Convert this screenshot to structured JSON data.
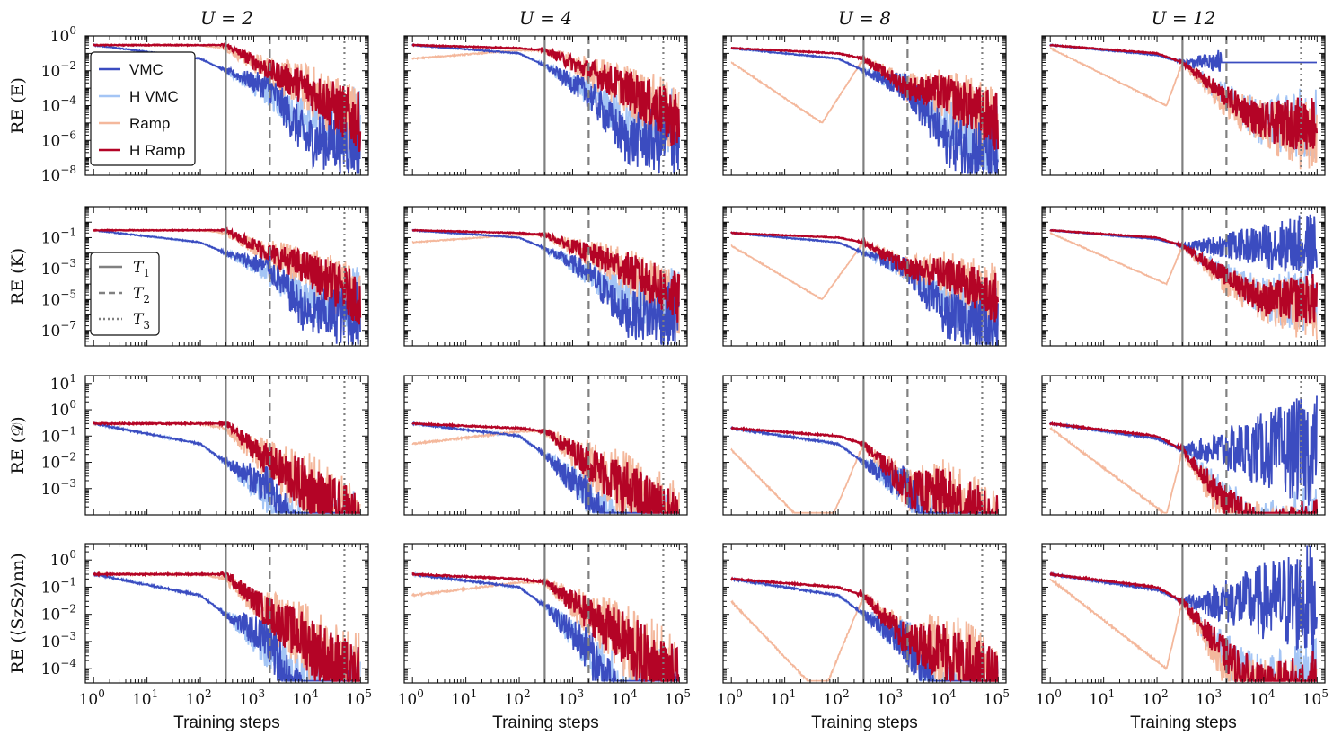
{
  "colors": {
    "VMC": "#3b4cc0",
    "H VMC": "#a4c5f5",
    "Ramp": "#f4b89c",
    "H Ramp": "#b40426",
    "markers": "#808080"
  },
  "legend_series": [
    "VMC",
    "H VMC",
    "Ramp",
    "H Ramp"
  ],
  "legend_markers": [
    {
      "label": "T",
      "sub": "1",
      "style": "solid"
    },
    {
      "label": "T",
      "sub": "2",
      "style": "dashed"
    },
    {
      "label": "T",
      "sub": "3",
      "style": "dotted"
    }
  ],
  "chart_data": {
    "type": "line",
    "layout": "grid 4x4",
    "x_scale": "log",
    "xlim": [
      0.7,
      140000
    ],
    "xlabel": "Training steps",
    "x_ticks": [
      1,
      10,
      100,
      1000,
      10000,
      100000
    ],
    "x_tick_labels": [
      "10^0",
      "10^1",
      "10^2",
      "10^3",
      "10^4",
      "10^5"
    ],
    "columns": [
      {
        "title": "U = 2",
        "markers": {
          "T1": 300,
          "T2": 2000,
          "T3": 50000
        }
      },
      {
        "title": "U = 4",
        "markers": {
          "T1": 300,
          "T2": 2000,
          "T3": 50000
        }
      },
      {
        "title": "U = 8",
        "markers": {
          "T1": 300,
          "T2": 2000,
          "T3": 50000
        }
      },
      {
        "title": "U = 12",
        "markers": {
          "T1": 300,
          "T2": 2000,
          "T3": 50000
        }
      }
    ],
    "rows": [
      {
        "ylabel": "RE (E)",
        "y_scale": "log",
        "ylim": [
          1e-08,
          1
        ],
        "y_ticks": [
          -8,
          -6,
          -4,
          -2,
          0
        ]
      },
      {
        "ylabel": "RE (K)",
        "y_scale": "log",
        "ylim": [
          1e-08,
          10
        ],
        "y_ticks": [
          -7,
          -5,
          -3,
          -1
        ]
      },
      {
        "ylabel": "RE (𝒟)",
        "y_scale": "log",
        "ylim": [
          0.0001,
          20
        ],
        "y_ticks": [
          -3,
          -2,
          -1,
          0,
          1
        ]
      },
      {
        "ylabel": "RE (⟨SzSz⟩nn)",
        "y_scale": "log",
        "ylim": [
          3e-05,
          4
        ],
        "y_ticks": [
          -4,
          -3,
          -2,
          -1,
          0
        ]
      }
    ],
    "series": [
      {
        "name": "VMC",
        "panels": [
          [
            {
              "x": 1,
              "y": 0.3
            },
            {
              "x": 100,
              "y": 0.05
            },
            {
              "x": 300,
              "y": 0.01
            },
            {
              "x": 2000,
              "y": 0.001
            },
            {
              "x": 10000,
              "y": 1e-06
            },
            {
              "x": 100000,
              "y": 1e-06
            }
          ],
          [
            {
              "x": 1,
              "y": 0.3
            },
            {
              "x": 100,
              "y": 0.1
            },
            {
              "x": 300,
              "y": 0.02
            },
            {
              "x": 2000,
              "y": 0.0005
            },
            {
              "x": 10000,
              "y": 1e-06
            },
            {
              "x": 100000,
              "y": 1e-06
            }
          ],
          [
            {
              "x": 1,
              "y": 0.2
            },
            {
              "x": 100,
              "y": 0.05
            },
            {
              "x": 300,
              "y": 0.01
            },
            {
              "x": 2000,
              "y": 0.001
            },
            {
              "x": 10000,
              "y": 1e-06
            },
            {
              "x": 100000,
              "y": 1e-07
            }
          ],
          [
            {
              "x": 1,
              "y": 0.3
            },
            {
              "x": 100,
              "y": 0.08
            },
            {
              "x": 300,
              "y": 0.03
            },
            {
              "x": 2000,
              "y": 0.03
            },
            {
              "x": 10000,
              "y": 0.03
            },
            {
              "x": 100000,
              "y": 0.03
            }
          ]
        ]
      },
      {
        "name": "H VMC",
        "panels": [
          [
            {
              "x": 1,
              "y": 0.3
            },
            {
              "x": 100,
              "y": 0.05
            },
            {
              "x": 300,
              "y": 0.01
            },
            {
              "x": 2000,
              "y": 0.0005
            },
            {
              "x": 10000,
              "y": 1e-05
            },
            {
              "x": 100000,
              "y": 1e-05
            }
          ],
          [
            {
              "x": 1,
              "y": 0.3
            },
            {
              "x": 100,
              "y": 0.1
            },
            {
              "x": 300,
              "y": 0.02
            },
            {
              "x": 2000,
              "y": 0.0005
            },
            {
              "x": 10000,
              "y": 1e-05
            },
            {
              "x": 100000,
              "y": 1e-05
            }
          ],
          [
            {
              "x": 1,
              "y": 0.2
            },
            {
              "x": 100,
              "y": 0.05
            },
            {
              "x": 300,
              "y": 0.01
            },
            {
              "x": 2000,
              "y": 0.001
            },
            {
              "x": 10000,
              "y": 1e-05
            },
            {
              "x": 100000,
              "y": 1e-06
            }
          ],
          [
            {
              "x": 1,
              "y": 0.3
            },
            {
              "x": 100,
              "y": 0.08
            },
            {
              "x": 300,
              "y": 0.03
            },
            {
              "x": 2000,
              "y": 0.0003
            },
            {
              "x": 10000,
              "y": 1e-05
            },
            {
              "x": 100000,
              "y": 1e-05
            }
          ]
        ]
      },
      {
        "name": "Ramp",
        "panels": [
          [
            {
              "x": 1,
              "y": 0.3
            },
            {
              "x": 100,
              "y": 0.3
            },
            {
              "x": 300,
              "y": 0.2
            },
            {
              "x": 2000,
              "y": 0.01
            },
            {
              "x": 10000,
              "y": 0.001
            },
            {
              "x": 100000,
              "y": 1e-05
            }
          ],
          [
            {
              "x": 1,
              "y": 0.05
            },
            {
              "x": 100,
              "y": 0.15
            },
            {
              "x": 300,
              "y": 0.15
            },
            {
              "x": 2000,
              "y": 0.01
            },
            {
              "x": 10000,
              "y": 0.001
            },
            {
              "x": 100000,
              "y": 1e-05
            }
          ],
          [
            {
              "x": 1,
              "y": 0.03
            },
            {
              "x": 50,
              "y": 1e-05
            },
            {
              "x": 300,
              "y": 0.05
            },
            {
              "x": 2000,
              "y": 0.001
            },
            {
              "x": 10000,
              "y": 0.0005
            },
            {
              "x": 100000,
              "y": 1e-05
            }
          ],
          [
            {
              "x": 1,
              "y": 0.2
            },
            {
              "x": 150,
              "y": 0.0001
            },
            {
              "x": 300,
              "y": 0.03
            },
            {
              "x": 2000,
              "y": 0.0001
            },
            {
              "x": 10000,
              "y": 1e-05
            },
            {
              "x": 100000,
              "y": 1e-06
            }
          ]
        ]
      },
      {
        "name": "H Ramp",
        "panels": [
          [
            {
              "x": 1,
              "y": 0.3
            },
            {
              "x": 100,
              "y": 0.3
            },
            {
              "x": 300,
              "y": 0.3
            },
            {
              "x": 2000,
              "y": 0.01
            },
            {
              "x": 10000,
              "y": 0.001
            },
            {
              "x": 100000,
              "y": 1e-05
            }
          ],
          [
            {
              "x": 1,
              "y": 0.3
            },
            {
              "x": 100,
              "y": 0.2
            },
            {
              "x": 300,
              "y": 0.15
            },
            {
              "x": 2000,
              "y": 0.01
            },
            {
              "x": 10000,
              "y": 0.001
            },
            {
              "x": 100000,
              "y": 1e-05
            }
          ],
          [
            {
              "x": 1,
              "y": 0.2
            },
            {
              "x": 100,
              "y": 0.1
            },
            {
              "x": 300,
              "y": 0.05
            },
            {
              "x": 2000,
              "y": 0.001
            },
            {
              "x": 10000,
              "y": 0.0005
            },
            {
              "x": 100000,
              "y": 1e-05
            }
          ],
          [
            {
              "x": 1,
              "y": 0.3
            },
            {
              "x": 100,
              "y": 0.1
            },
            {
              "x": 300,
              "y": 0.03
            },
            {
              "x": 2000,
              "y": 0.0003
            },
            {
              "x": 10000,
              "y": 1e-05
            },
            {
              "x": 100000,
              "y": 1e-05
            }
          ]
        ]
      }
    ]
  }
}
